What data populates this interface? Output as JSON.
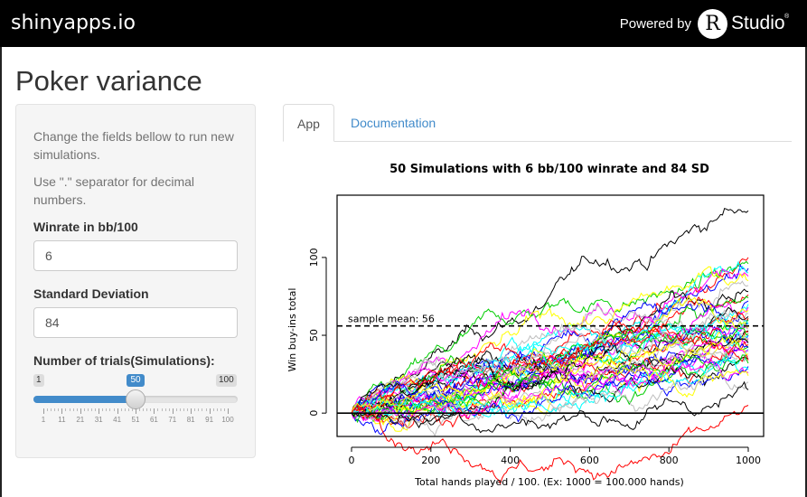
{
  "header": {
    "brand": "shinyapps.io",
    "powered_by": "Powered by",
    "logo_letter": "R",
    "logo_text": "Studio",
    "logo_tm": "®"
  },
  "page": {
    "title": "Poker variance"
  },
  "sidebar": {
    "help_line1": "Change the fields bellow to run new simulations.",
    "help_line2": "Use \".\" separator for decimal numbers.",
    "winrate_label": "Winrate in bb/100",
    "winrate_value": "6",
    "sd_label": "Standard Deviation",
    "sd_value": "84",
    "trials_label": "Number of trials(Simulations):",
    "trials_min": "1",
    "trials_max": "100",
    "trials_value": "50",
    "trials_fraction": 0.495,
    "trials_ticks": [
      "1",
      "11",
      "21",
      "31",
      "41",
      "51",
      "61",
      "71",
      "81",
      "91",
      "100"
    ]
  },
  "tabs": [
    {
      "label": "App",
      "active": true
    },
    {
      "label": "Documentation",
      "active": false
    }
  ],
  "chart_data": {
    "type": "line",
    "title": "50 Simulations with 6 bb/100 winrate and 84 SD",
    "xlabel": "Total hands played / 100. (Ex: 1000 = 100.000 hands)",
    "ylabel": "Win buy-ins total",
    "xlim": [
      0,
      1000
    ],
    "ylim": [
      -15,
      140
    ],
    "xticks": [
      "0",
      "200",
      "400",
      "600",
      "800",
      "1000"
    ],
    "yticks": [
      "0",
      "50",
      "100"
    ],
    "series_count": 50,
    "mean_line": {
      "value": 56,
      "label": "sample mean:",
      "label_value": "56",
      "style": "dashed"
    },
    "zero_line": {
      "value": 0
    },
    "approx_final_values": [
      130,
      100,
      96,
      93,
      90,
      88,
      85,
      82,
      78,
      76,
      74,
      72,
      70,
      68,
      66,
      64,
      62,
      61,
      60,
      58,
      57,
      56,
      55,
      54,
      53,
      52,
      51,
      50,
      49,
      48,
      47,
      46,
      45,
      44,
      43,
      42,
      41,
      40,
      38,
      37,
      35,
      34,
      32,
      30,
      28,
      26,
      24,
      20,
      15,
      5
    ],
    "colors": [
      "#000000",
      "#ff0000",
      "#00cd00",
      "#0000ff",
      "#00ffff",
      "#ff00ff",
      "#ffff00",
      "#bebebe"
    ]
  }
}
